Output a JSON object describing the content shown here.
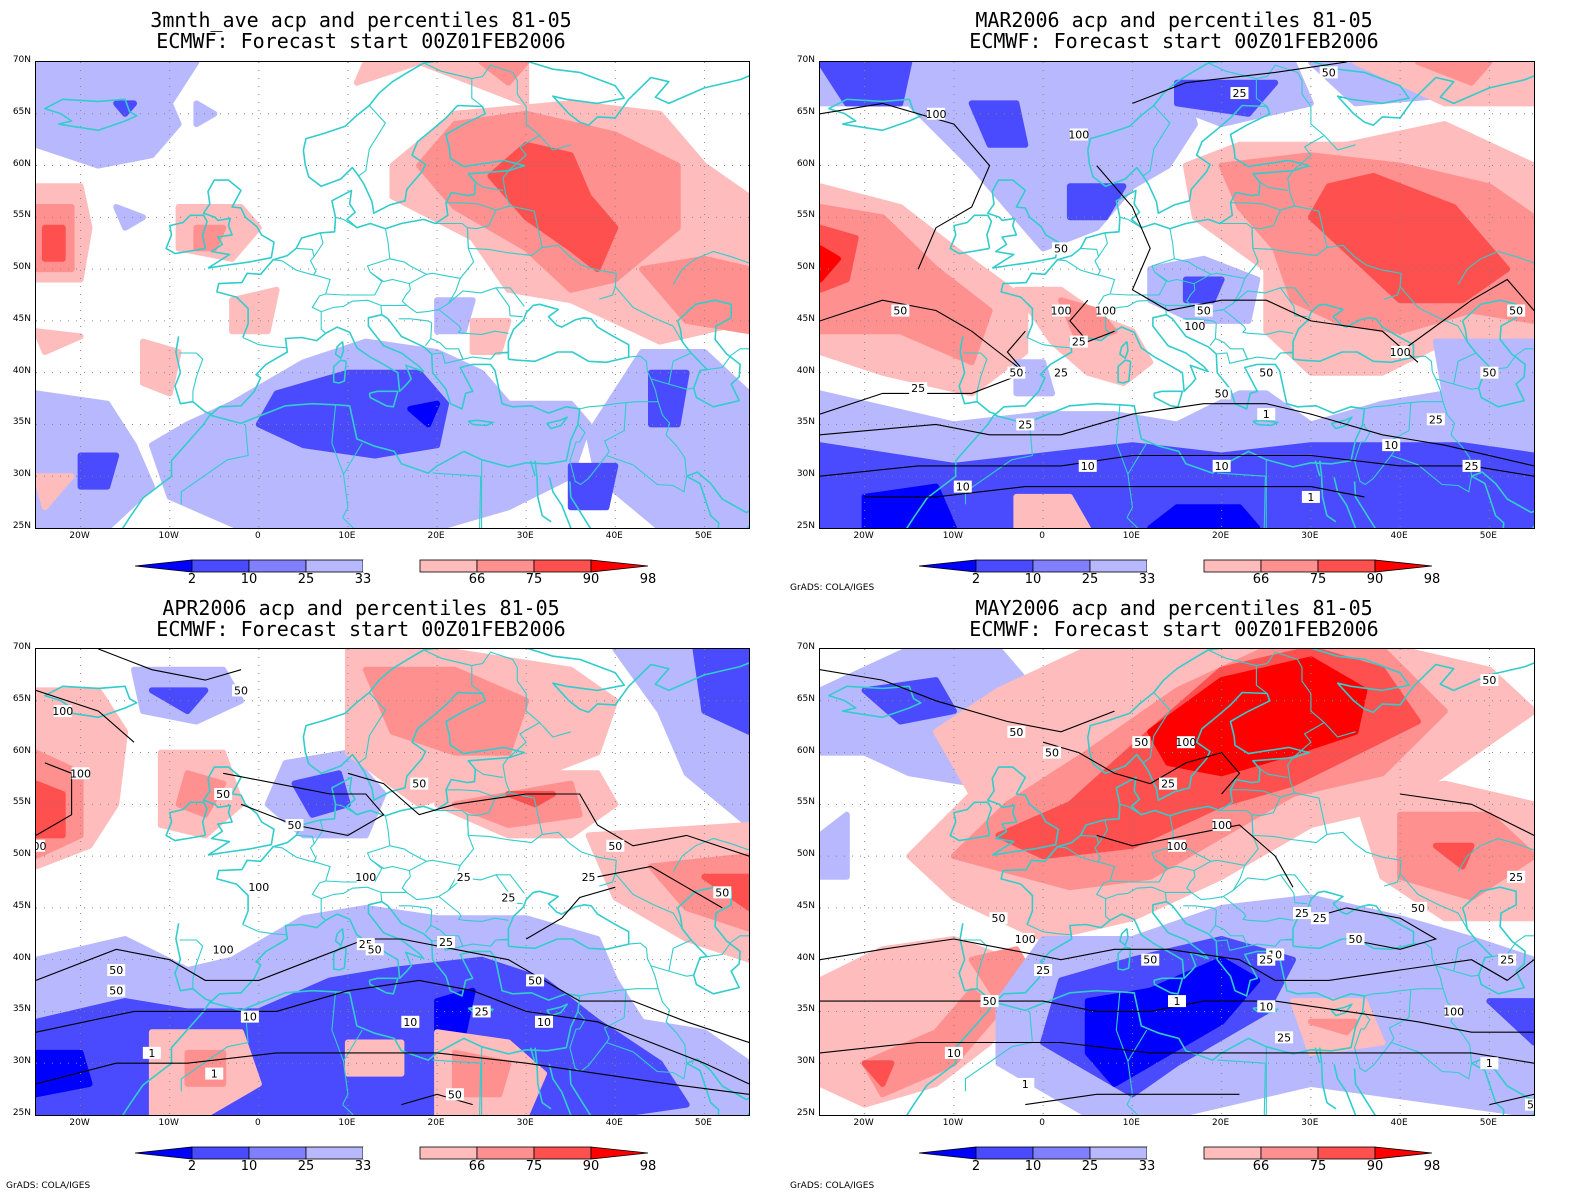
{
  "colors": {
    "b2": "#0000ff",
    "b10": "#4a4aff",
    "b25": "#8080ff",
    "b33": "#b8b8ff",
    "r66": "#ffbcbc",
    "r75": "#ff9090",
    "r90": "#ff5050",
    "r98": "#ff0000",
    "coast": "#33cccc",
    "contour": "#000000"
  },
  "colorbar": {
    "labels": [
      "2",
      "10",
      "25",
      "33",
      "66",
      "75",
      "90",
      "98"
    ]
  },
  "credit": "GrADS: COLA/IGES",
  "axes": {
    "lat_labels": [
      "70N",
      "65N",
      "60N",
      "55N",
      "50N",
      "45N",
      "40N",
      "35N",
      "30N",
      "25N"
    ],
    "lon_labels": [
      "20W",
      "10W",
      "0",
      "10E",
      "20E",
      "30E",
      "40E",
      "50E"
    ]
  },
  "panels": [
    {
      "title_line1": "3mnth_ave acp and percentiles 81-05",
      "title_line2": "ECMWF: Forecast start 00Z01FEB2006",
      "contour_labels": []
    },
    {
      "title_line1": "MAR2006 acp and percentiles 81-05",
      "title_line2": "ECMWF: Forecast start 00Z01FEB2006",
      "contour_labels": [
        "50",
        "25",
        "100",
        "100",
        "50",
        "100",
        "100",
        "50",
        "100",
        "50",
        "25",
        "25",
        "50",
        "50",
        "50",
        "25",
        "25",
        "1",
        "10",
        "10",
        "1",
        "10",
        "25",
        "100",
        "50",
        "10",
        "25",
        "50",
        "25"
      ]
    },
    {
      "title_line1": "APR2006 acp and percentiles 81-05",
      "title_line2": "ECMWF: Forecast start 00Z01FEB2006",
      "contour_labels": [
        "50",
        "100",
        "100",
        "100",
        "50",
        "50",
        "50",
        "100",
        "100",
        "100",
        "50",
        "50",
        "25",
        "25",
        "50",
        "25",
        "10",
        "25",
        "50",
        "10",
        "10",
        "1",
        "1",
        "50",
        "25",
        "25",
        "50",
        "50"
      ]
    },
    {
      "title_line1": "MAY2006 acp and percentiles 81-05",
      "title_line2": "ECMWF: Forecast start 00Z01FEB2006",
      "contour_labels": [
        "50",
        "50",
        "50",
        "50",
        "100",
        "100",
        "100",
        "100",
        "50",
        "25",
        "25",
        "50",
        "25",
        "10",
        "1",
        "25",
        "1",
        "10",
        "10",
        "25",
        "50",
        "25",
        "50",
        "25",
        "100",
        "50",
        "50",
        "25",
        "1"
      ]
    }
  ]
}
